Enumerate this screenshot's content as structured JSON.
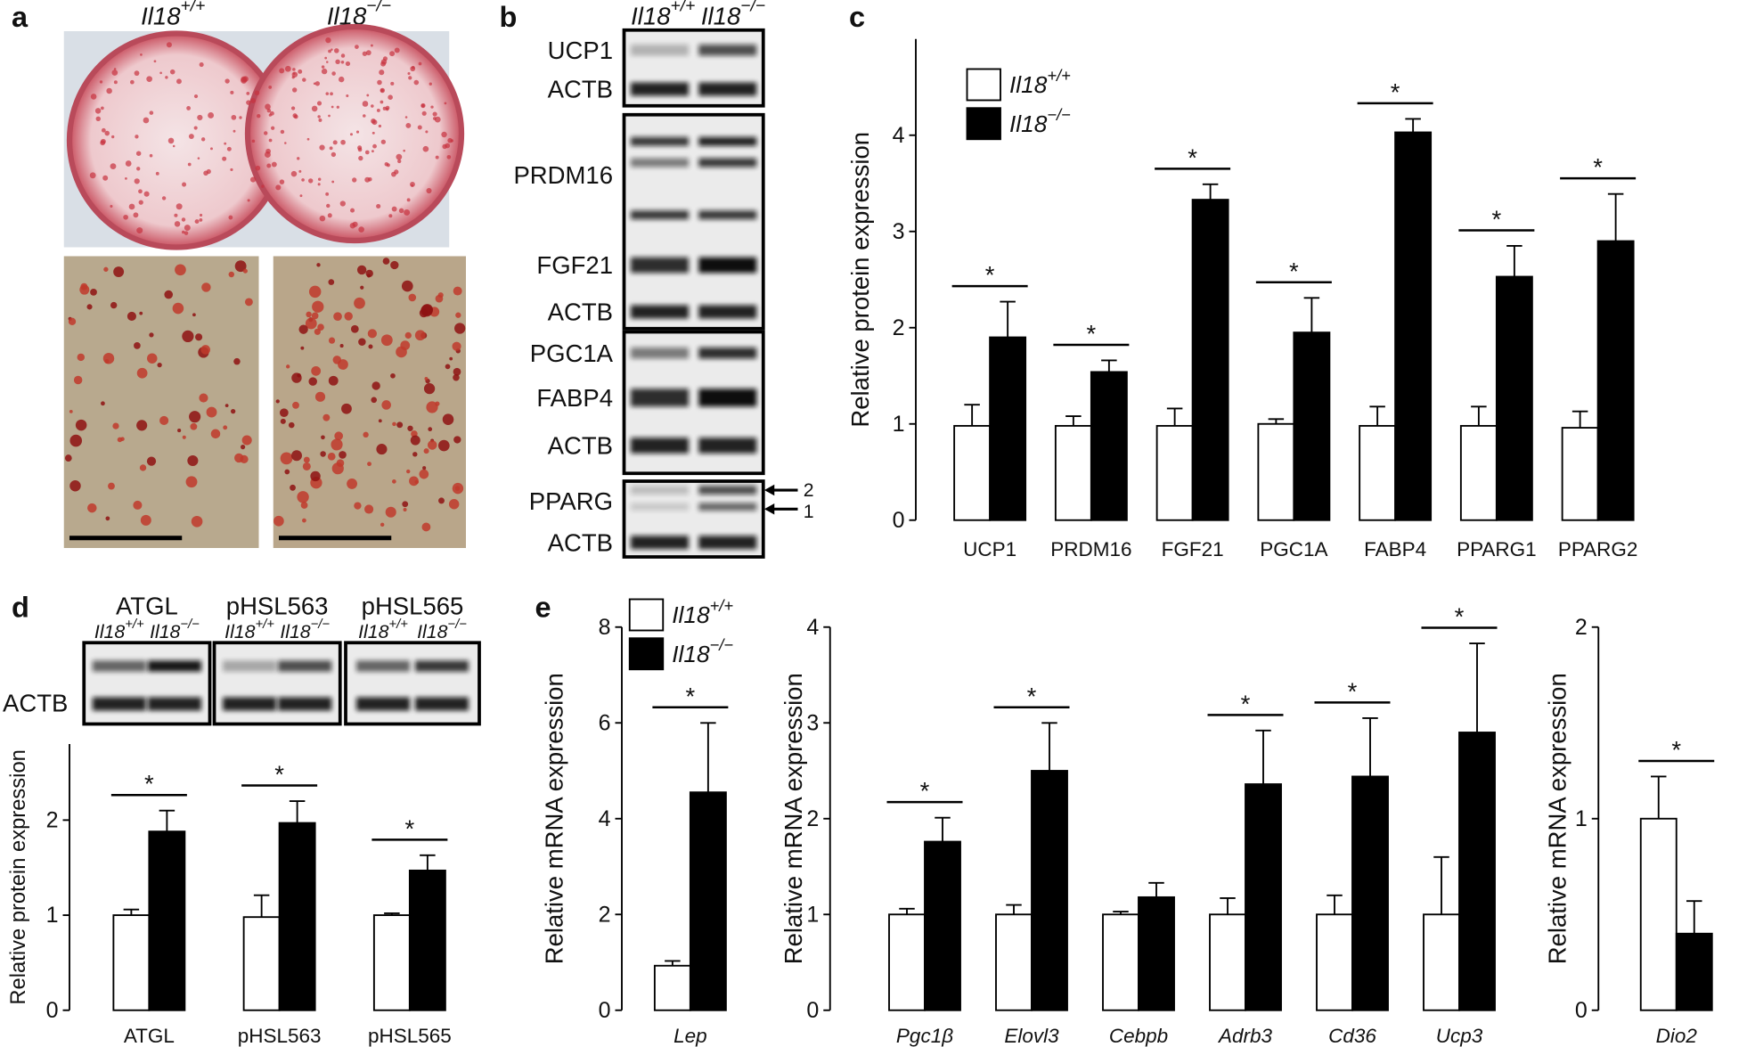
{
  "panel_labels": [
    "a",
    "b",
    "c",
    "d",
    "e"
  ],
  "genotypes": [
    "Il18+/+",
    "Il18−/−"
  ],
  "panel_b": {
    "labels": [
      "UCP1",
      "ACTB",
      "PRDM16",
      "FGF21",
      "ACTB",
      "PGC1A",
      "FABP4",
      "ACTB",
      "PPARG",
      "ACTB"
    ],
    "arrows": [
      "2",
      "1"
    ]
  },
  "panel_d": {
    "proteins": [
      "ATGL",
      "pHSL563",
      "pHSL565"
    ],
    "loading": "ACTB"
  },
  "chart_data": [
    {
      "type": "bar",
      "ylabel": "Relative protein expression",
      "categories": [
        "UCP1",
        "PRDM16",
        "FGF21",
        "PGC1A",
        "FABP4",
        "PPARG1",
        "PPARG2"
      ],
      "series": [
        {
          "name": "Il18+/+",
          "color": "#ffffff",
          "values": [
            0.98,
            0.98,
            0.98,
            1.0,
            0.98,
            0.98,
            0.96
          ],
          "errors": [
            0.22,
            0.1,
            0.18,
            0.05,
            0.2,
            0.2,
            0.17
          ]
        },
        {
          "name": "Il18−/−",
          "color": "#000000",
          "values": [
            1.9,
            1.54,
            3.33,
            1.95,
            4.03,
            2.53,
            2.9
          ],
          "errors": [
            0.37,
            0.12,
            0.16,
            0.36,
            0.14,
            0.32,
            0.49
          ]
        }
      ],
      "significance": [
        "*",
        "*",
        "*",
        "*",
        "*",
        "*",
        "*"
      ],
      "ylim": [
        0,
        5
      ],
      "yticks": [
        0,
        1,
        2,
        3,
        4
      ],
      "legend": "upper left"
    },
    {
      "type": "bar",
      "ylabel": "Relative protein expression",
      "categories": [
        "ATGL",
        "pHSL563",
        "pHSL565"
      ],
      "series": [
        {
          "color": "#ffffff",
          "values": [
            1.0,
            0.98,
            1.0
          ],
          "errors": [
            0.06,
            0.23,
            0.02
          ]
        },
        {
          "color": "#000000",
          "values": [
            1.88,
            1.97,
            1.47
          ],
          "errors": [
            0.22,
            0.23,
            0.16
          ]
        }
      ],
      "significance": [
        "*",
        "*",
        "*"
      ],
      "ylim": [
        0,
        2.8
      ],
      "yticks": [
        0,
        1,
        2
      ]
    },
    {
      "type": "bar",
      "ylabel": "Relative mRNA expression",
      "categories": [
        "Lep"
      ],
      "series": [
        {
          "name": "Il18+/+",
          "color": "#ffffff",
          "values": [
            0.93
          ],
          "errors": [
            0.1
          ]
        },
        {
          "name": "Il18−/−",
          "color": "#000000",
          "values": [
            4.55
          ],
          "errors": [
            1.45
          ]
        }
      ],
      "significance": [
        "*"
      ],
      "ylim": [
        0,
        8
      ],
      "yticks": [
        0,
        2,
        4,
        6,
        8
      ],
      "legend": "upper left"
    },
    {
      "type": "bar",
      "ylabel": "Relative mRNA expression",
      "categories": [
        "Pgc1β",
        "Elovl3",
        "Cebpb",
        "Adrb3",
        "Cd36",
        "Ucp3"
      ],
      "series": [
        {
          "color": "#ffffff",
          "values": [
            1.0,
            1.0,
            1.0,
            1.0,
            1.0,
            1.0
          ],
          "errors": [
            0.06,
            0.1,
            0.03,
            0.17,
            0.2,
            0.6
          ]
        },
        {
          "color": "#000000",
          "values": [
            1.76,
            2.5,
            1.18,
            2.36,
            2.44,
            2.9
          ],
          "errors": [
            0.25,
            0.5,
            0.15,
            0.56,
            0.61,
            0.93
          ]
        }
      ],
      "significance": [
        "*",
        "*",
        null,
        "*",
        "*",
        "*"
      ],
      "ylim": [
        0,
        4
      ],
      "yticks": [
        0,
        1,
        2,
        3,
        4
      ]
    },
    {
      "type": "bar",
      "ylabel": "Relative mRNA expression",
      "categories": [
        "Dio2"
      ],
      "series": [
        {
          "color": "#ffffff",
          "values": [
            1.0
          ],
          "errors": [
            0.22
          ]
        },
        {
          "color": "#000000",
          "values": [
            0.4
          ],
          "errors": [
            0.17
          ]
        }
      ],
      "significance": [
        "*"
      ],
      "ylim": [
        0,
        2
      ],
      "yticks": [
        0,
        1,
        2
      ]
    }
  ]
}
